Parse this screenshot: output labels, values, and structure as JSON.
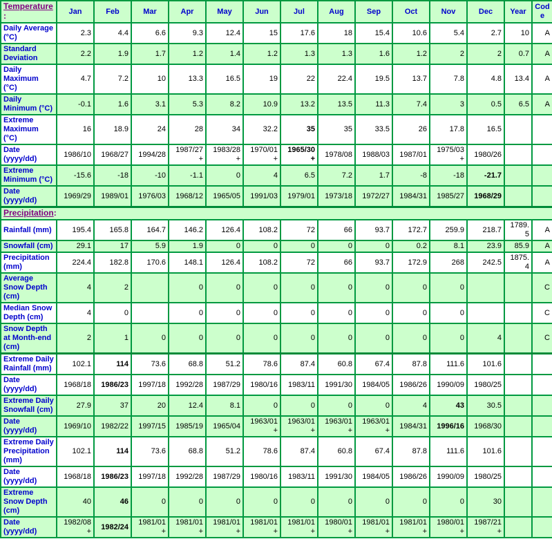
{
  "colors": {
    "border_green": "#009940",
    "row_green": "#ccffcc",
    "row_white": "#ffffff",
    "label_blue": "#0000cc",
    "section_purple": "#800080",
    "value_black": "#000000"
  },
  "header": {
    "section_label": "Temperature",
    "colon": ":",
    "columns": [
      "Jan",
      "Feb",
      "Mar",
      "Apr",
      "May",
      "Jun",
      "Jul",
      "Aug",
      "Sep",
      "Oct",
      "Nov",
      "Dec",
      "Year",
      "Code"
    ]
  },
  "groups": [
    {
      "name": "temperature",
      "rows": [
        {
          "label": "Daily Average (°C)",
          "bg": "white",
          "values": [
            "2.3",
            "4.4",
            "6.6",
            "9.3",
            "12.4",
            "15",
            "17.6",
            "18",
            "15.4",
            "10.6",
            "5.4",
            "2.7",
            "10",
            "A"
          ],
          "bold": []
        },
        {
          "label": "Standard Deviation",
          "bg": "green",
          "values": [
            "2.2",
            "1.9",
            "1.7",
            "1.2",
            "1.4",
            "1.2",
            "1.3",
            "1.3",
            "1.6",
            "1.2",
            "2",
            "2",
            "0.7",
            "A"
          ],
          "bold": []
        },
        {
          "label": "Daily Maximum (°C)",
          "bg": "white",
          "values": [
            "4.7",
            "7.2",
            "10",
            "13.3",
            "16.5",
            "19",
            "22",
            "22.4",
            "19.5",
            "13.7",
            "7.8",
            "4.8",
            "13.4",
            "A"
          ],
          "bold": []
        },
        {
          "label": "Daily Minimum (°C)",
          "bg": "green",
          "values": [
            "-0.1",
            "1.6",
            "3.1",
            "5.3",
            "8.2",
            "10.9",
            "13.2",
            "13.5",
            "11.3",
            "7.4",
            "3",
            "0.5",
            "6.5",
            "A"
          ],
          "bold": []
        },
        {
          "label": "Extreme Maximum (°C)",
          "bg": "white",
          "values": [
            "16",
            "18.9",
            "24",
            "28",
            "34",
            "32.2",
            "35",
            "35",
            "33.5",
            "26",
            "17.8",
            "16.5",
            "",
            ""
          ],
          "bold": [
            6
          ]
        },
        {
          "label": "Date (yyyy/dd)",
          "bg": "white",
          "values": [
            "1986/10",
            "1968/27",
            "1994/28",
            "1987/27+",
            "1983/28+",
            "1970/01+",
            "1965/30+",
            "1978/08",
            "1988/03",
            "1987/01",
            "1975/03+",
            "1980/26",
            "",
            ""
          ],
          "bold": [
            6
          ]
        },
        {
          "label": "Extreme Minimum (°C)",
          "bg": "green",
          "values": [
            "-15.6",
            "-18",
            "-10",
            "-1.1",
            "0",
            "4",
            "6.5",
            "7.2",
            "1.7",
            "-8",
            "-18",
            "-21.7",
            "",
            ""
          ],
          "bold": [
            11
          ]
        },
        {
          "label": "Date (yyyy/dd)",
          "bg": "green",
          "values": [
            "1969/29",
            "1989/01",
            "1976/03",
            "1968/12",
            "1965/05",
            "1991/03",
            "1979/01",
            "1973/18",
            "1972/27",
            "1984/31",
            "1985/27",
            "1968/29",
            "",
            ""
          ],
          "bold": [
            11
          ]
        }
      ]
    },
    {
      "name": "precipitation",
      "section_label": "Precipitation",
      "colon": ":",
      "rows": [
        {
          "label": "Rainfall (mm)",
          "bg": "white",
          "values": [
            "195.4",
            "165.8",
            "164.7",
            "146.2",
            "126.4",
            "108.2",
            "72",
            "66",
            "93.7",
            "172.7",
            "259.9",
            "218.7",
            "1789.5",
            "A"
          ],
          "bold": []
        },
        {
          "label": "Snowfall (cm)",
          "bg": "green",
          "values": [
            "29.1",
            "17",
            "5.9",
            "1.9",
            "0",
            "0",
            "0",
            "0",
            "0",
            "0.2",
            "8.1",
            "23.9",
            "85.9",
            "A"
          ],
          "bold": []
        },
        {
          "label": "Precipitation (mm)",
          "bg": "white",
          "values": [
            "224.4",
            "182.8",
            "170.6",
            "148.1",
            "126.4",
            "108.2",
            "72",
            "66",
            "93.7",
            "172.9",
            "268",
            "242.5",
            "1875.4",
            "A"
          ],
          "bold": []
        },
        {
          "label": "Average Snow Depth (cm)",
          "bg": "green",
          "values": [
            "4",
            "2",
            "",
            "0",
            "0",
            "0",
            "0",
            "0",
            "0",
            "0",
            "0",
            "",
            "",
            "C"
          ],
          "bold": []
        },
        {
          "label": "Median Snow Depth (cm)",
          "bg": "white",
          "values": [
            "4",
            "0",
            "",
            "0",
            "0",
            "0",
            "0",
            "0",
            "0",
            "0",
            "0",
            "",
            "",
            "C"
          ],
          "bold": []
        },
        {
          "label": "Snow Depth at Month-end (cm)",
          "bg": "green",
          "values": [
            "2",
            "1",
            "0",
            "0",
            "0",
            "0",
            "0",
            "0",
            "0",
            "0",
            "0",
            "4",
            "",
            "C"
          ],
          "bold": []
        }
      ]
    },
    {
      "name": "extremes",
      "rows": [
        {
          "label": "Extreme Daily Rainfall (mm)",
          "bg": "white",
          "values": [
            "102.1",
            "114",
            "73.6",
            "68.8",
            "51.2",
            "78.6",
            "87.4",
            "60.8",
            "67.4",
            "87.8",
            "111.6",
            "101.6",
            "",
            ""
          ],
          "bold": [
            1
          ]
        },
        {
          "label": "Date (yyyy/dd)",
          "bg": "white",
          "values": [
            "1968/18",
            "1986/23",
            "1997/18",
            "1992/28",
            "1987/29",
            "1980/16",
            "1983/11",
            "1991/30",
            "1984/05",
            "1986/26",
            "1990/09",
            "1980/25",
            "",
            ""
          ],
          "bold": [
            1
          ]
        },
        {
          "label": "Extreme Daily Snowfall (cm)",
          "bg": "green",
          "values": [
            "27.9",
            "37",
            "20",
            "12.4",
            "8.1",
            "0",
            "0",
            "0",
            "0",
            "4",
            "43",
            "30.5",
            "",
            ""
          ],
          "bold": [
            10
          ]
        },
        {
          "label": "Date (yyyy/dd)",
          "bg": "green",
          "values": [
            "1969/10",
            "1982/22",
            "1997/15",
            "1985/19",
            "1965/04",
            "1963/01+",
            "1963/01+",
            "1963/01+",
            "1963/01+",
            "1984/31",
            "1996/16",
            "1968/30",
            "",
            ""
          ],
          "bold": [
            10
          ]
        },
        {
          "label": "Extreme Daily Precipitation (mm)",
          "bg": "white",
          "values": [
            "102.1",
            "114",
            "73.6",
            "68.8",
            "51.2",
            "78.6",
            "87.4",
            "60.8",
            "67.4",
            "87.8",
            "111.6",
            "101.6",
            "",
            ""
          ],
          "bold": [
            1
          ]
        },
        {
          "label": "Date (yyyy/dd)",
          "bg": "white",
          "values": [
            "1968/18",
            "1986/23",
            "1997/18",
            "1992/28",
            "1987/29",
            "1980/16",
            "1983/11",
            "1991/30",
            "1984/05",
            "1986/26",
            "1990/09",
            "1980/25",
            "",
            ""
          ],
          "bold": [
            1
          ]
        },
        {
          "label": "Extreme Snow Depth (cm)",
          "bg": "green",
          "values": [
            "40",
            "46",
            "0",
            "0",
            "0",
            "0",
            "0",
            "0",
            "0",
            "0",
            "0",
            "30",
            "",
            ""
          ],
          "bold": [
            1
          ]
        },
        {
          "label": "Date (yyyy/dd)",
          "bg": "green",
          "values": [
            "1982/08+",
            "1982/24",
            "1981/01+",
            "1981/01+",
            "1981/01+",
            "1981/01+",
            "1981/01+",
            "1980/01+",
            "1981/01+",
            "1981/01+",
            "1980/01+",
            "1987/21+",
            "",
            ""
          ],
          "bold": [
            1
          ]
        }
      ]
    }
  ]
}
